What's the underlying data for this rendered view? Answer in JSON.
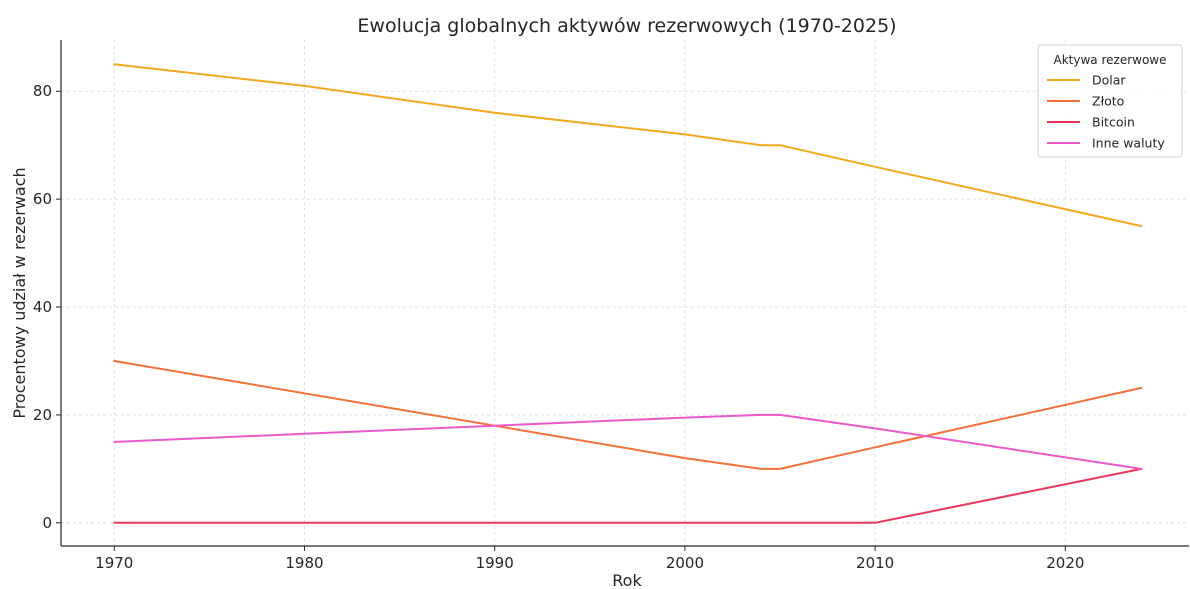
{
  "chart_data": {
    "type": "line",
    "title": "Ewolucja globalnych aktywów rezerwowych (1970-2025)",
    "xlabel": "Rok",
    "ylabel": "Procentowy udział w rezerwach",
    "xlim": [
      1967.2,
      2026.5
    ],
    "ylim": [
      -4.3,
      89.5
    ],
    "xticks": [
      1970,
      1980,
      1990,
      2000,
      2010,
      2020
    ],
    "yticks": [
      0,
      20,
      40,
      60,
      80
    ],
    "grid": true,
    "legend": {
      "title": "Aktywa rezerwowe",
      "position": "top-right"
    },
    "series": [
      {
        "name": "Dolar",
        "color": "#f2a91f",
        "x": [
          1970,
          1980,
          1990,
          2000,
          2004,
          2005,
          2010,
          2024
        ],
        "y": [
          85,
          81,
          76,
          72,
          70,
          70,
          66,
          55
        ]
      },
      {
        "name": "Złoto",
        "color": "#f2703a",
        "x": [
          1970,
          1980,
          1990,
          2000,
          2004,
          2005,
          2010,
          2024
        ],
        "y": [
          30,
          24,
          18,
          12,
          10,
          10,
          14,
          25
        ]
      },
      {
        "name": "Bitcoin",
        "color": "#e8365c",
        "x": [
          1970,
          1980,
          1990,
          2000,
          2004,
          2005,
          2010,
          2024
        ],
        "y": [
          0,
          0,
          0,
          0,
          0,
          0,
          0,
          10
        ]
      },
      {
        "name": "Inne waluty",
        "color": "#ec59c9",
        "x": [
          1970,
          1980,
          1990,
          2000,
          2004,
          2005,
          2010,
          2024
        ],
        "y": [
          15,
          16.5,
          18,
          19.5,
          20,
          20,
          17.5,
          10
        ]
      }
    ]
  }
}
